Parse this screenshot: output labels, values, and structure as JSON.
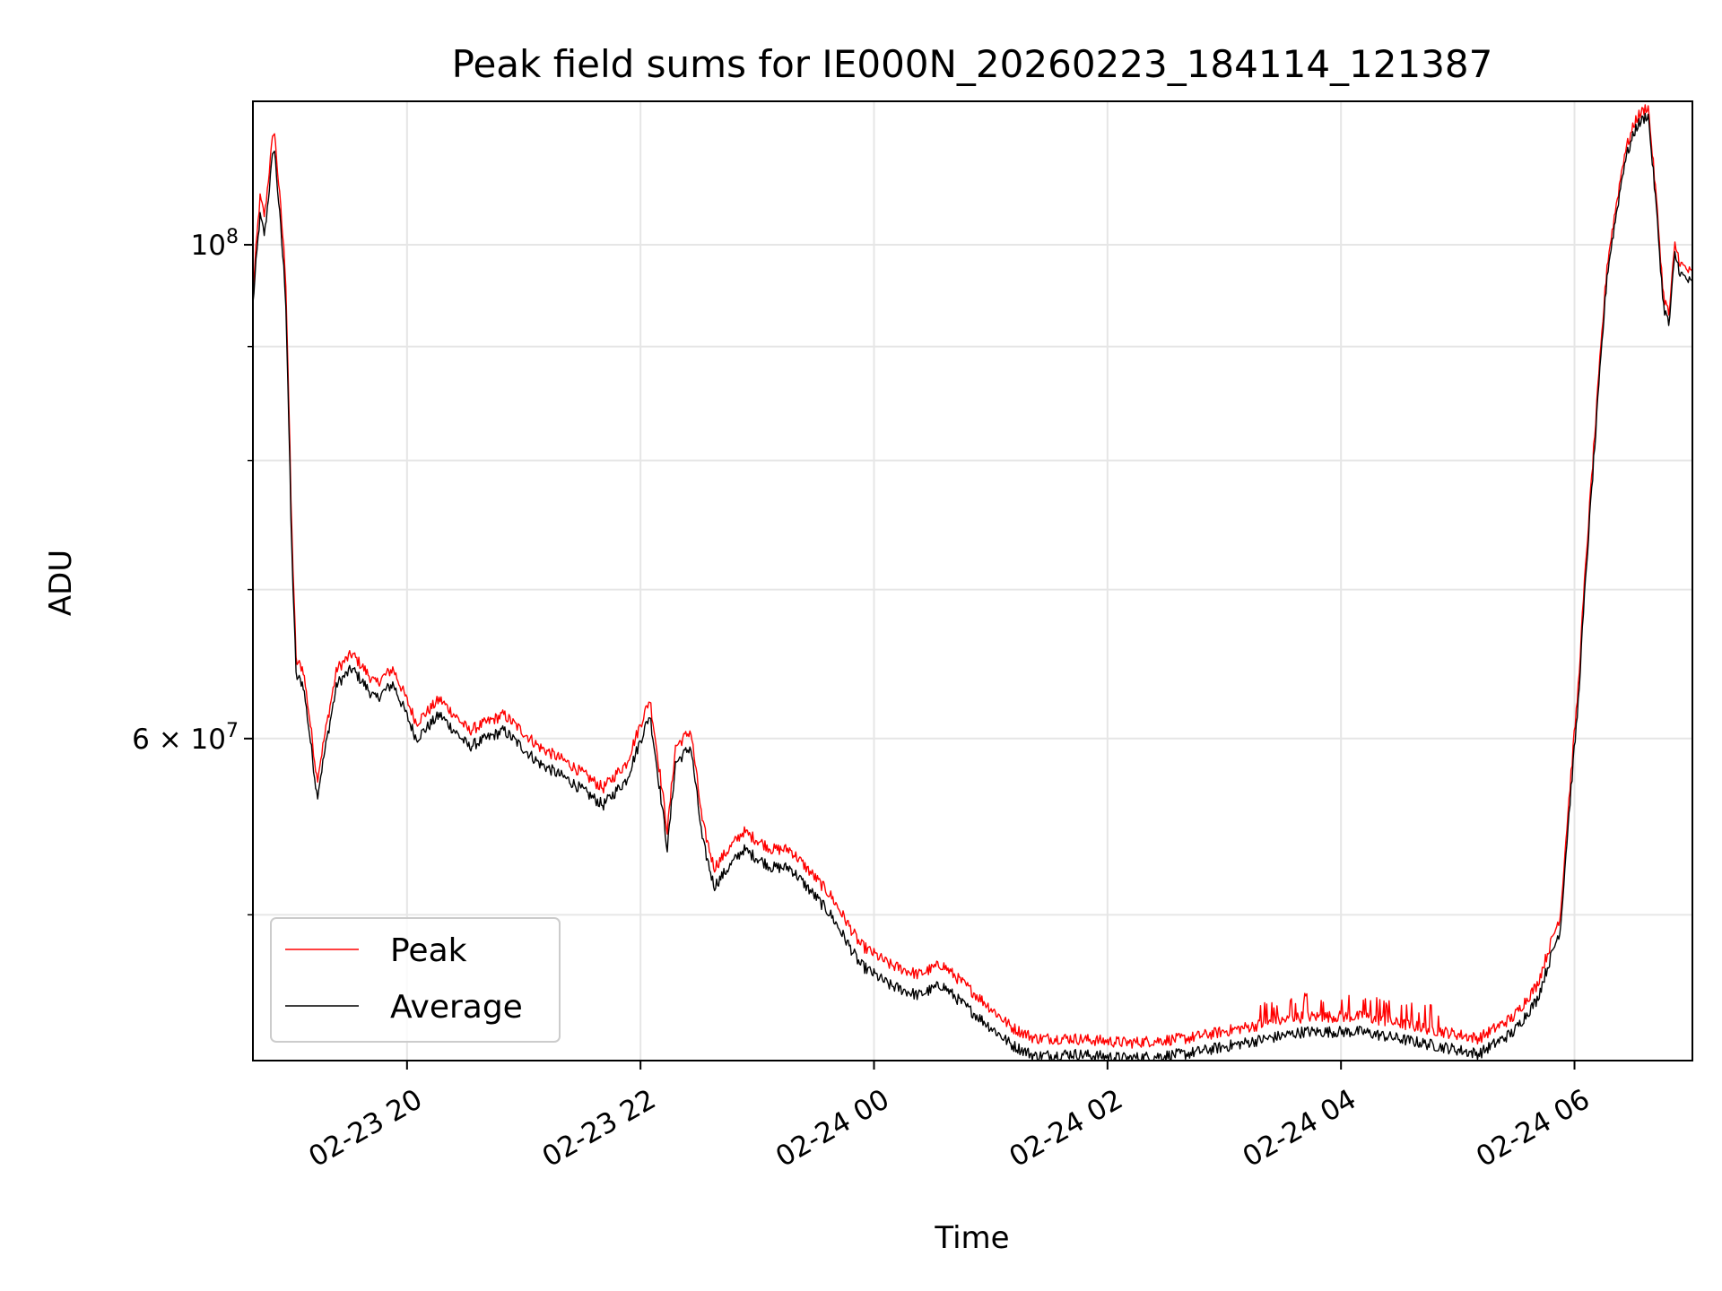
{
  "chart_data": {
    "type": "line",
    "title": "Peak field sums for IE000N_20260223_184114_121387",
    "xlabel": "Time",
    "ylabel": "ADU",
    "yscale": "log",
    "grid": true,
    "legend_position": "lower-left",
    "x_unit": "hours since 02-23 18:41",
    "xlim": [
      0,
      12.33
    ],
    "ylim": [
      43000000,
      116000000
    ],
    "x_ticks": [
      {
        "x": 1.32,
        "label": "02-23 20"
      },
      {
        "x": 3.32,
        "label": "02-23 22"
      },
      {
        "x": 5.32,
        "label": "02-24 00"
      },
      {
        "x": 7.32,
        "label": "02-24 02"
      },
      {
        "x": 9.32,
        "label": "02-24 04"
      },
      {
        "x": 11.32,
        "label": "02-24 06"
      }
    ],
    "y_ticks": [
      {
        "y": 100000000,
        "label": "10",
        "sup": "8",
        "mult": ""
      },
      {
        "y": 60000000,
        "label": "10",
        "sup": "7",
        "mult": "6 × "
      }
    ],
    "y_minor_ticks": [
      50000000,
      70000000,
      80000000,
      90000000
    ],
    "colors": {
      "peak": "#ff0000",
      "average": "#000000",
      "grid": "#e6e6e6"
    },
    "series": [
      {
        "name": "Peak",
        "x": [
          0,
          0.06,
          0.1,
          0.18,
          0.28,
          0.33,
          0.37,
          0.43,
          0.55,
          0.72,
          0.85,
          1.05,
          1.2,
          1.4,
          1.6,
          1.85,
          2.15,
          2.45,
          2.7,
          3.0,
          3.2,
          3.4,
          3.55,
          3.62,
          3.75,
          3.85,
          3.95,
          4.2,
          4.45,
          4.6,
          4.95,
          5.2,
          5.45,
          5.7,
          5.9,
          6.1,
          6.5,
          6.7,
          7.0,
          7.5,
          8.0,
          8.5,
          9.0,
          9.5,
          10.0,
          10.5,
          10.8,
          11.0,
          11.2,
          11.35,
          11.5,
          11.6,
          11.75,
          11.85,
          11.95,
          12.02,
          12.08,
          12.13,
          12.18,
          12.23,
          12.33
        ],
        "values": [
          95000000,
          105000000,
          103000000,
          113000000,
          97000000,
          75000000,
          65000000,
          64500000,
          57500000,
          64500000,
          65500000,
          63500000,
          64500000,
          61000000,
          62500000,
          60500000,
          61500000,
          59500000,
          58500000,
          57000000,
          58500000,
          62500000,
          54500000,
          59500000,
          60500000,
          55000000,
          52500000,
          54500000,
          53500000,
          53500000,
          51000000,
          48500000,
          47500000,
          47000000,
          47500000,
          46500000,
          44500000,
          44000000,
          44000000,
          43800000,
          44000000,
          44500000,
          45000000,
          45000000,
          44500000,
          44000000,
          45000000,
          46500000,
          50000000,
          63000000,
          83000000,
          98000000,
          110000000,
          114000000,
          115500000,
          105000000,
          95000000,
          93000000,
          100000000,
          98000000,
          97000000
        ]
      },
      {
        "name": "Average",
        "x": [
          0,
          0.06,
          0.1,
          0.18,
          0.28,
          0.33,
          0.37,
          0.43,
          0.55,
          0.72,
          0.85,
          1.05,
          1.2,
          1.4,
          1.6,
          1.85,
          2.15,
          2.45,
          2.7,
          3.0,
          3.2,
          3.4,
          3.55,
          3.62,
          3.75,
          3.85,
          3.95,
          4.2,
          4.45,
          4.6,
          4.95,
          5.2,
          5.45,
          5.7,
          5.9,
          6.1,
          6.5,
          6.7,
          7.0,
          7.5,
          8.0,
          8.5,
          9.0,
          9.5,
          10.0,
          10.5,
          10.8,
          11.0,
          11.2,
          11.35,
          11.5,
          11.6,
          11.75,
          11.85,
          11.95,
          12.02,
          12.08,
          12.13,
          12.18,
          12.23,
          12.33
        ],
        "values": [
          94000000,
          103000000,
          101000000,
          111000000,
          95000000,
          73500000,
          64000000,
          63500000,
          56500000,
          63500000,
          64500000,
          62500000,
          63500000,
          60000000,
          61500000,
          59500000,
          60500000,
          58500000,
          57500000,
          56000000,
          57500000,
          61500000,
          53500000,
          58500000,
          59500000,
          54000000,
          51500000,
          53500000,
          52500000,
          52500000,
          50000000,
          47500000,
          46500000,
          46000000,
          46500000,
          45500000,
          43700000,
          43200000,
          43300000,
          43100000,
          43300000,
          43800000,
          44300000,
          44300000,
          43800000,
          43300000,
          44300000,
          45800000,
          49300000,
          62000000,
          82000000,
          97000000,
          109000000,
          113000000,
          114500000,
          104000000,
          94000000,
          92000000,
          99000000,
          97000000,
          96000000
        ]
      }
    ]
  }
}
